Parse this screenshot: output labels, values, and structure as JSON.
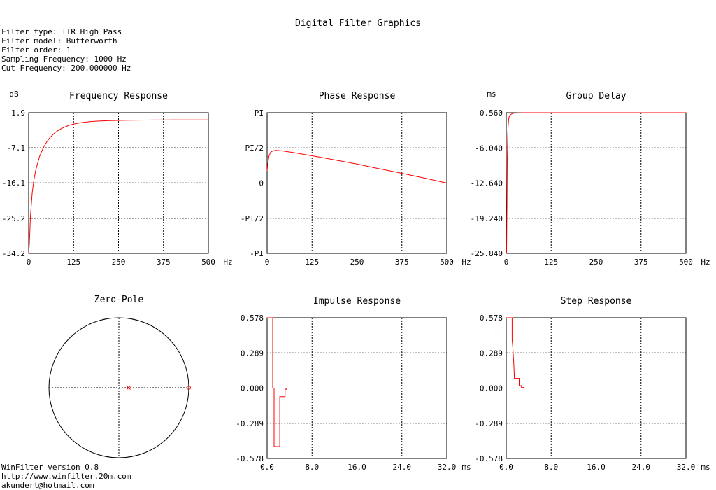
{
  "title": "Digital Filter Graphics",
  "info": [
    "Filter type: IIR High Pass",
    "Filter model: Butterworth",
    "Filter order: 1",
    "Sampling Frequency: 1000 Hz",
    "Cut Frequency: 200.000000 Hz"
  ],
  "footer": [
    "WinFilter version 0.8",
    "http://www.winfilter.20m.com",
    "akundert@hotmail.com"
  ],
  "colors": {
    "trace": "#ff0000",
    "frame": "#000000",
    "grid": "#000000",
    "background": "#ffffff"
  },
  "chart_data": [
    {
      "id": "frequency",
      "type": "line",
      "title": "Frequency Response",
      "unit_label": "dB",
      "xunit": "Hz",
      "xlim": [
        0,
        500
      ],
      "ylim": [
        -34.2,
        1.9
      ],
      "xticks": [
        0,
        125,
        250,
        375,
        500
      ],
      "xtick_labels": [
        "0",
        "125",
        "250",
        "375",
        "500"
      ],
      "yticks": [
        1.9,
        -7.1,
        -16.1,
        -25.2,
        -34.2
      ],
      "ytick_labels": [
        "1.9",
        "-7.1",
        "-16.1",
        "-25.2",
        "-34.2"
      ],
      "grid": true,
      "x": [
        0,
        2,
        5,
        10,
        15,
        20,
        30,
        40,
        50,
        60,
        75,
        90,
        110,
        125,
        150,
        175,
        200,
        225,
        250,
        275,
        300,
        325,
        350,
        375,
        400,
        425,
        450,
        475,
        500
      ],
      "y": [
        -34.2,
        -31.8,
        -24.6,
        -18.6,
        -15.1,
        -12.7,
        -9.4,
        -7.2,
        -5.6,
        -4.4,
        -3.1,
        -2.2,
        -1.4,
        -1.0,
        -0.6,
        -0.35,
        -0.22,
        -0.13,
        -0.07,
        -0.03,
        0.0,
        0.02,
        0.03,
        0.04,
        0.05,
        0.05,
        0.05,
        0.05,
        0.05
      ]
    },
    {
      "id": "phase",
      "type": "line",
      "title": "Phase Response",
      "xunit": "Hz",
      "xlim": [
        0,
        500
      ],
      "ylim": [
        -3.14159,
        3.14159
      ],
      "xticks": [
        0,
        125,
        250,
        375,
        500
      ],
      "xtick_labels": [
        "0",
        "125",
        "250",
        "375",
        "500"
      ],
      "yticks": [
        3.14159,
        1.5708,
        0,
        -1.5708,
        -3.14159
      ],
      "ytick_labels": [
        "PI",
        "PI/2",
        "0",
        "-PI/2",
        "-PI"
      ],
      "grid": true,
      "x": [
        0,
        2,
        5,
        10,
        15,
        20,
        25,
        30,
        40,
        50,
        75,
        100,
        125,
        150,
        200,
        250,
        300,
        350,
        400,
        450,
        500
      ],
      "y": [
        0.55,
        0.85,
        1.2,
        1.38,
        1.43,
        1.45,
        1.46,
        1.455,
        1.44,
        1.42,
        1.36,
        1.29,
        1.22,
        1.15,
        1.0,
        0.85,
        0.68,
        0.52,
        0.35,
        0.18,
        0.0
      ]
    },
    {
      "id": "group",
      "type": "line",
      "title": "Group Delay",
      "unit_label": "ms",
      "xunit": "Hz",
      "xlim": [
        0,
        500
      ],
      "ylim": [
        -25.84,
        0.56
      ],
      "xticks": [
        0,
        125,
        250,
        375,
        500
      ],
      "xtick_labels": [
        "0",
        "125",
        "250",
        "375",
        "500"
      ],
      "yticks": [
        0.56,
        -6.04,
        -12.64,
        -19.24,
        -25.84
      ],
      "ytick_labels": [
        "0.560",
        "-6.040",
        "-12.640",
        "-19.240",
        "-25.840"
      ],
      "grid": true,
      "x": [
        0,
        1,
        2,
        3,
        4,
        5,
        6,
        7,
        8,
        10,
        12,
        15,
        20,
        25,
        30,
        40,
        50,
        70,
        100,
        500
      ],
      "y": [
        -25.84,
        -25.84,
        -17.0,
        -8.0,
        -4.0,
        -2.2,
        -1.2,
        -0.6,
        -0.25,
        0.05,
        0.2,
        0.33,
        0.45,
        0.5,
        0.53,
        0.55,
        0.56,
        0.56,
        0.56,
        0.56
      ]
    },
    {
      "id": "zeropole",
      "type": "scatter",
      "title": "Zero-Pole",
      "grid": true,
      "zeros": [
        {
          "re": 1.0,
          "im": 0.0
        }
      ],
      "poles": [
        {
          "re": 0.14,
          "im": 0.0
        }
      ]
    },
    {
      "id": "impulse",
      "type": "line",
      "title": "Impulse Response",
      "xunit": "ms",
      "xlim": [
        0,
        32
      ],
      "ylim": [
        -0.578,
        0.578
      ],
      "xticks": [
        0,
        8,
        16,
        24,
        32
      ],
      "xtick_labels": [
        "0.0",
        "8.0",
        "16.0",
        "24.0",
        "32.0"
      ],
      "yticks": [
        0.578,
        0.289,
        0,
        -0.289,
        -0.578
      ],
      "ytick_labels": [
        "0.578",
        "0.289",
        "0.000",
        "-0.289",
        "-0.578"
      ],
      "grid": true,
      "x": [
        0.0,
        1.0,
        1.0,
        1.25,
        1.25,
        2.25,
        2.25,
        2.5,
        2.5,
        3.2,
        3.2,
        3.4,
        3.4,
        3.8,
        3.8,
        32
      ],
      "y": [
        0.578,
        0.578,
        0.0,
        0.0,
        -0.48,
        -0.48,
        -0.07,
        -0.07,
        -0.07,
        -0.07,
        -0.01,
        -0.01,
        0.0,
        0.0,
        0.0,
        0.0
      ]
    },
    {
      "id": "step",
      "type": "line",
      "title": "Step Response",
      "xunit": "ms",
      "xlim": [
        0,
        32
      ],
      "ylim": [
        -0.578,
        0.578
      ],
      "xticks": [
        0,
        8,
        16,
        24,
        32
      ],
      "xtick_labels": [
        "0.0",
        "8.0",
        "16.0",
        "24.0",
        "32.0"
      ],
      "yticks": [
        0.578,
        0.289,
        0,
        -0.289,
        -0.578
      ],
      "ytick_labels": [
        "0.578",
        "0.289",
        "0.000",
        "-0.289",
        "-0.578"
      ],
      "grid": true,
      "x": [
        0.0,
        1.05,
        1.05,
        1.2,
        1.35,
        1.45,
        1.45,
        2.3,
        2.3,
        2.7,
        2.7,
        3.2,
        3.2,
        32
      ],
      "y": [
        0.578,
        0.578,
        0.4,
        0.32,
        0.2,
        0.09,
        0.08,
        0.08,
        0.02,
        0.02,
        0.005,
        0.005,
        0.0,
        0.0
      ]
    }
  ]
}
